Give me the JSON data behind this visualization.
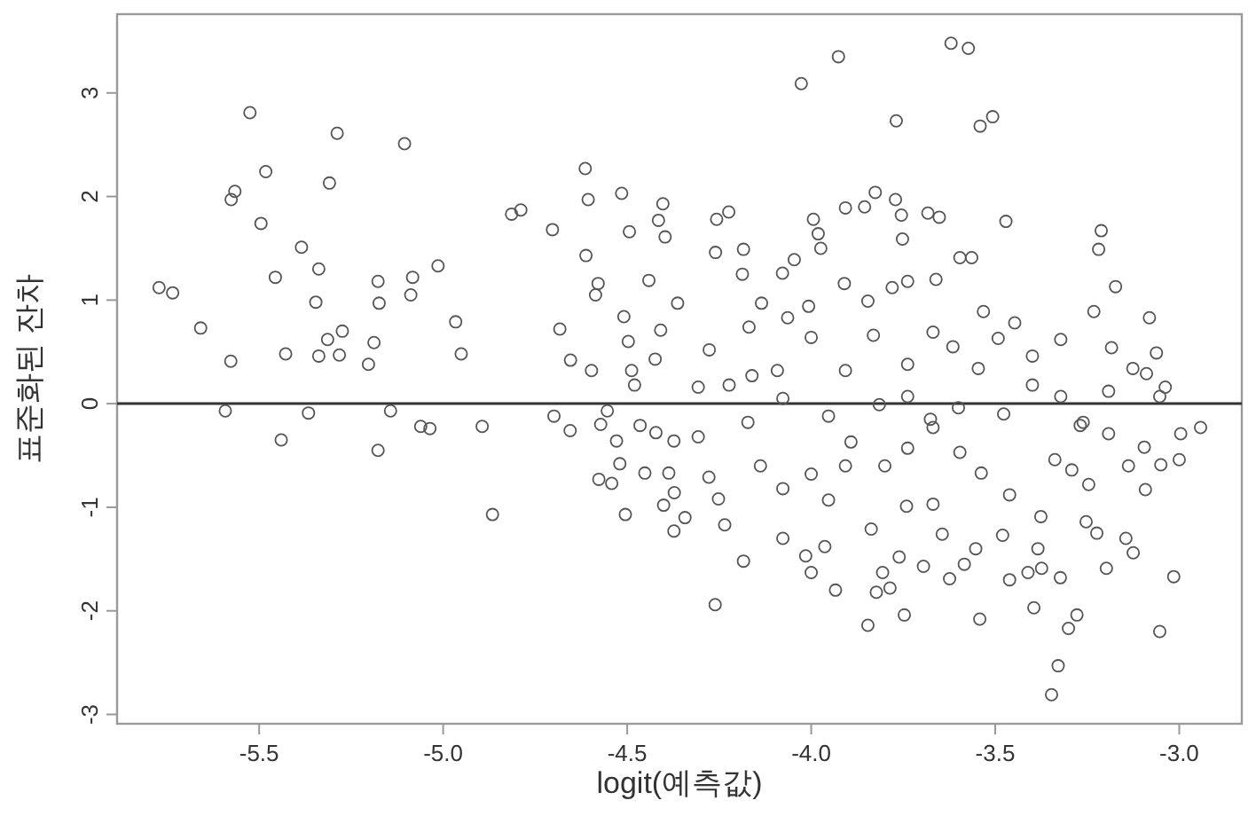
{
  "chart_data": {
    "type": "scatter",
    "xlabel": "logit(예측값)",
    "ylabel": "표준화된 잔차",
    "marker": "circle",
    "xlim": [
      -5.886,
      -2.83
    ],
    "ylim": [
      -3.09,
      3.76
    ],
    "xticks": [
      {
        "value": -5.5,
        "label": "-5.5"
      },
      {
        "value": -5.0,
        "label": "-5.0"
      },
      {
        "value": -4.5,
        "label": "-4.5"
      },
      {
        "value": -4.0,
        "label": "-4.0"
      },
      {
        "value": -3.5,
        "label": "-3.5"
      },
      {
        "value": -3.0,
        "label": "-3.0"
      }
    ],
    "yticks": [
      -3,
      -2,
      -1,
      0,
      1,
      2,
      3
    ],
    "ref_lines": [
      {
        "axis": "y",
        "value": 0,
        "color": "#333333"
      }
    ],
    "series": [
      {
        "color": "#555555",
        "x": [
          -5.772,
          -5.735,
          -5.659,
          -5.577,
          -5.592,
          -5.566,
          -5.576,
          -5.525,
          -5.482,
          -5.495,
          -5.456,
          -5.428,
          -5.44,
          -5.385,
          -5.338,
          -5.346,
          -5.309,
          -5.288,
          -5.314,
          -5.274,
          -5.338,
          -5.282,
          -5.366,
          -5.177,
          -5.174,
          -5.188,
          -5.203,
          -5.105,
          -5.083,
          -5.088,
          -5.014,
          -5.143,
          -5.177,
          -5.061,
          -5.036,
          -4.966,
          -4.951,
          -4.894,
          -4.866,
          -4.814,
          -4.789,
          -4.703,
          -4.614,
          -4.606,
          -4.612,
          -4.579,
          -4.586,
          -4.683,
          -4.654,
          -4.597,
          -4.699,
          -4.655,
          -4.572,
          -4.554,
          -4.529,
          -4.52,
          -4.577,
          -4.542,
          -4.505,
          -4.515,
          -4.494,
          -4.509,
          -4.497,
          -4.488,
          -4.48,
          -4.403,
          -4.415,
          -4.397,
          -4.441,
          -4.409,
          -4.424,
          -4.452,
          -4.387,
          -4.372,
          -4.401,
          -4.373,
          -4.343,
          -4.465,
          -4.422,
          -4.373,
          -4.363,
          -4.257,
          -4.224,
          -4.26,
          -4.184,
          -4.187,
          -4.261,
          -4.184,
          -4.235,
          -4.252,
          -4.135,
          -4.078,
          -4.046,
          -4.027,
          -3.926,
          -3.994,
          -3.981,
          -3.974,
          -4.064,
          -4.007,
          -4.169,
          -4.077,
          -4.015,
          -4.0,
          -3.963,
          -3.934,
          -3.91,
          -3.907,
          -3.855,
          -3.826,
          -3.771,
          -3.755,
          -3.752,
          -3.769,
          -3.846,
          -3.78,
          -3.738,
          -3.683,
          -3.652,
          -3.62,
          -3.573,
          -3.541,
          -3.507,
          -3.596,
          -3.564,
          -3.661,
          -3.471,
          -3.532,
          -3.447,
          -3.212,
          -3.219,
          -3.173,
          -3.232,
          -3.081,
          -3.062,
          -3.089,
          -3.038,
          -2.942,
          -2.996,
          -3.0,
          -3.015,
          -3.053,
          -3.05,
          -3.092,
          -3.125,
          -3.145,
          -3.198,
          -3.224,
          -3.253,
          -3.278,
          -3.301,
          -3.329,
          -3.347,
          -3.323,
          -3.395,
          -3.374,
          -3.411,
          -3.461,
          -3.542,
          -3.624,
          -3.695,
          -3.747,
          -3.786,
          -3.823,
          -3.846,
          -3.761,
          -3.806,
          -3.837,
          -3.584,
          -3.553,
          -3.48,
          -3.384,
          -3.644,
          -3.741,
          -3.669,
          -3.596,
          -3.538,
          -3.461,
          -3.376,
          -3.292,
          -3.246,
          -3.269,
          -3.192,
          -3.138,
          -3.095,
          -3.192,
          -3.126,
          -3.184,
          -3.322,
          -3.399,
          -3.492,
          -3.546,
          -3.615,
          -3.669,
          -3.738,
          -3.831,
          -3.907,
          -4.0,
          -4.092,
          -4.161,
          -4.223,
          -4.277,
          -4.077,
          -3.953,
          -3.907,
          -4.0,
          -4.077,
          -4.138,
          -4.172,
          -3.892,
          -3.8,
          -3.738,
          -3.669,
          -3.6,
          -3.477,
          -3.338,
          -3.261,
          -3.815,
          -3.738,
          -3.676,
          -3.399,
          -3.322,
          -3.053,
          -4.307,
          -4.307,
          -4.278,
          -3.953
        ],
        "values": [
          1.12,
          1.07,
          0.73,
          0.41,
          -0.07,
          2.05,
          1.97,
          2.81,
          2.24,
          1.74,
          1.22,
          0.48,
          -0.35,
          1.51,
          1.3,
          0.98,
          2.13,
          2.61,
          0.62,
          0.7,
          0.46,
          0.47,
          -0.09,
          1.18,
          0.97,
          0.59,
          0.38,
          2.51,
          1.22,
          1.05,
          1.33,
          -0.07,
          -0.45,
          -0.22,
          -0.24,
          0.79,
          0.48,
          -0.22,
          -1.07,
          1.83,
          1.87,
          1.68,
          2.27,
          1.97,
          1.43,
          1.16,
          1.05,
          0.72,
          0.42,
          0.32,
          -0.12,
          -0.26,
          -0.2,
          -0.07,
          -0.36,
          -0.58,
          -0.73,
          -0.77,
          -1.07,
          2.03,
          1.66,
          0.84,
          0.6,
          0.32,
          0.18,
          1.93,
          1.77,
          1.61,
          1.19,
          0.71,
          0.43,
          -0.67,
          -0.67,
          -0.86,
          -0.98,
          -1.23,
          -1.1,
          -0.21,
          -0.28,
          -0.36,
          0.97,
          1.78,
          1.85,
          1.46,
          1.49,
          1.25,
          -1.94,
          -1.52,
          -1.17,
          -0.92,
          0.97,
          1.26,
          1.39,
          3.09,
          3.35,
          1.78,
          1.64,
          1.5,
          0.83,
          0.94,
          0.74,
          -1.3,
          -1.47,
          -1.63,
          -1.38,
          -1.8,
          1.16,
          1.89,
          1.9,
          2.04,
          1.97,
          1.82,
          1.59,
          2.73,
          0.99,
          1.12,
          1.18,
          1.84,
          1.8,
          3.48,
          3.43,
          2.68,
          2.77,
          1.41,
          1.41,
          1.2,
          1.76,
          0.89,
          0.78,
          1.67,
          1.49,
          1.13,
          0.89,
          0.83,
          0.49,
          0.29,
          0.16,
          -0.23,
          -0.29,
          -0.54,
          -1.67,
          -2.2,
          -0.59,
          -0.83,
          -1.44,
          -1.3,
          -1.59,
          -1.25,
          -1.14,
          -2.04,
          -2.17,
          -2.53,
          -2.81,
          -1.68,
          -1.97,
          -1.59,
          -1.63,
          -1.7,
          -2.08,
          -1.69,
          -1.57,
          -2.04,
          -1.78,
          -1.82,
          -2.14,
          -1.48,
          -1.63,
          -1.21,
          -1.55,
          -1.4,
          -1.27,
          -1.4,
          -1.26,
          -0.99,
          -0.97,
          -0.47,
          -0.67,
          -0.88,
          -1.09,
          -0.64,
          -0.78,
          -0.21,
          -0.29,
          -0.6,
          -0.42,
          0.12,
          0.34,
          0.54,
          0.62,
          0.46,
          0.63,
          0.34,
          0.55,
          0.69,
          0.38,
          0.66,
          0.32,
          0.64,
          0.32,
          0.27,
          0.18,
          0.52,
          0.05,
          -0.12,
          -0.6,
          -0.68,
          -0.82,
          -0.6,
          -0.18,
          -0.37,
          -0.6,
          -0.43,
          -0.23,
          -0.04,
          -0.1,
          -0.54,
          -0.18,
          -0.01,
          0.07,
          -0.15,
          0.18,
          0.07,
          0.07,
          -0.32,
          0.16,
          -0.71,
          -0.93
        ]
      }
    ]
  }
}
